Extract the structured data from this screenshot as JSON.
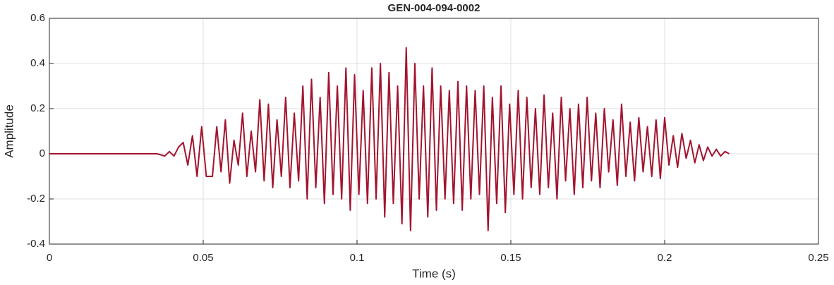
{
  "chart_data": {
    "type": "line",
    "title": "GEN-004-094-0002",
    "xlabel": "Time (s)",
    "ylabel": "Amplitude",
    "xlim": [
      0,
      0.25
    ],
    "ylim": [
      -0.4,
      0.6
    ],
    "xticks": [
      0,
      0.05,
      0.1,
      0.15,
      0.2,
      0.25
    ],
    "yticks": [
      -0.4,
      -0.2,
      0,
      0.2,
      0.4,
      0.6
    ],
    "grid": true,
    "x": [
      0,
      0.01,
      0.02,
      0.03,
      0.035,
      0.0375,
      0.039,
      0.0405,
      0.042,
      0.0435,
      0.045,
      0.0465,
      0.048,
      0.0495,
      0.051,
      0.053,
      0.0544,
      0.0558,
      0.0572,
      0.0586,
      0.06,
      0.0614,
      0.0628,
      0.0642,
      0.0656,
      0.067,
      0.0684,
      0.0698,
      0.0712,
      0.0726,
      0.074,
      0.0754,
      0.0768,
      0.0782,
      0.0796,
      0.081,
      0.0824,
      0.0838,
      0.0852,
      0.0866,
      0.088,
      0.0894,
      0.0908,
      0.0922,
      0.0936,
      0.095,
      0.0964,
      0.0978,
      0.0992,
      0.1006,
      0.102,
      0.1034,
      0.1048,
      0.1062,
      0.1076,
      0.109,
      0.1104,
      0.1118,
      0.1132,
      0.1146,
      0.116,
      0.1174,
      0.1188,
      0.1202,
      0.1216,
      0.123,
      0.1244,
      0.1258,
      0.1272,
      0.1286,
      0.13,
      0.1314,
      0.1328,
      0.1342,
      0.1356,
      0.137,
      0.1384,
      0.1398,
      0.1412,
      0.1426,
      0.144,
      0.1454,
      0.1468,
      0.1482,
      0.1496,
      0.151,
      0.1524,
      0.1538,
      0.1552,
      0.1566,
      0.158,
      0.1594,
      0.1608,
      0.1622,
      0.1636,
      0.165,
      0.1664,
      0.1678,
      0.1692,
      0.1706,
      0.172,
      0.1734,
      0.1748,
      0.1762,
      0.1776,
      0.179,
      0.1804,
      0.1818,
      0.1832,
      0.1846,
      0.186,
      0.1874,
      0.1888,
      0.1902,
      0.1916,
      0.193,
      0.1944,
      0.1958,
      0.1972,
      0.1986,
      0.2,
      0.2014,
      0.2028,
      0.2042,
      0.2056,
      0.207,
      0.2084,
      0.2098,
      0.2112,
      0.2126,
      0.214,
      0.2154,
      0.2168,
      0.2182,
      0.2196,
      0.221
    ],
    "series": [
      {
        "color": "#a2142f",
        "values": [
          0,
          0,
          0,
          0,
          0,
          -0.01,
          0.01,
          -0.01,
          0.03,
          0.05,
          -0.05,
          0.08,
          -0.1,
          0.12,
          -0.1,
          -0.1,
          0.12,
          -0.08,
          0.15,
          -0.13,
          0.06,
          -0.05,
          0.18,
          -0.1,
          0.1,
          -0.08,
          0.24,
          -0.12,
          0.22,
          -0.15,
          0.15,
          -0.1,
          0.25,
          -0.15,
          0.18,
          -0.12,
          0.3,
          -0.2,
          0.33,
          -0.15,
          0.25,
          -0.22,
          0.36,
          -0.18,
          0.3,
          -0.2,
          0.38,
          -0.25,
          0.35,
          -0.18,
          0.28,
          -0.22,
          0.38,
          -0.2,
          0.4,
          -0.28,
          0.36,
          -0.22,
          0.3,
          -0.31,
          0.47,
          -0.34,
          0.4,
          -0.2,
          0.3,
          -0.28,
          0.38,
          -0.25,
          0.3,
          -0.2,
          0.28,
          -0.22,
          0.32,
          -0.25,
          0.3,
          -0.2,
          0.28,
          -0.18,
          0.3,
          -0.34,
          0.25,
          -0.22,
          0.3,
          -0.26,
          0.22,
          -0.18,
          0.28,
          -0.2,
          0.25,
          -0.15,
          0.2,
          -0.18,
          0.26,
          -0.15,
          0.18,
          -0.2,
          0.25,
          -0.12,
          0.2,
          -0.18,
          0.22,
          -0.15,
          0.25,
          -0.12,
          0.18,
          -0.15,
          0.2,
          -0.08,
          0.15,
          -0.14,
          0.22,
          -0.1,
          0.14,
          -0.12,
          0.16,
          -0.08,
          0.12,
          -0.1,
          0.15,
          -0.11,
          0.16,
          -0.05,
          0.08,
          -0.06,
          0.09,
          -0.02,
          0.06,
          -0.04,
          0.04,
          -0.03,
          0.03,
          -0.01,
          0.02,
          -0.01,
          0.01,
          0
        ]
      }
    ]
  }
}
